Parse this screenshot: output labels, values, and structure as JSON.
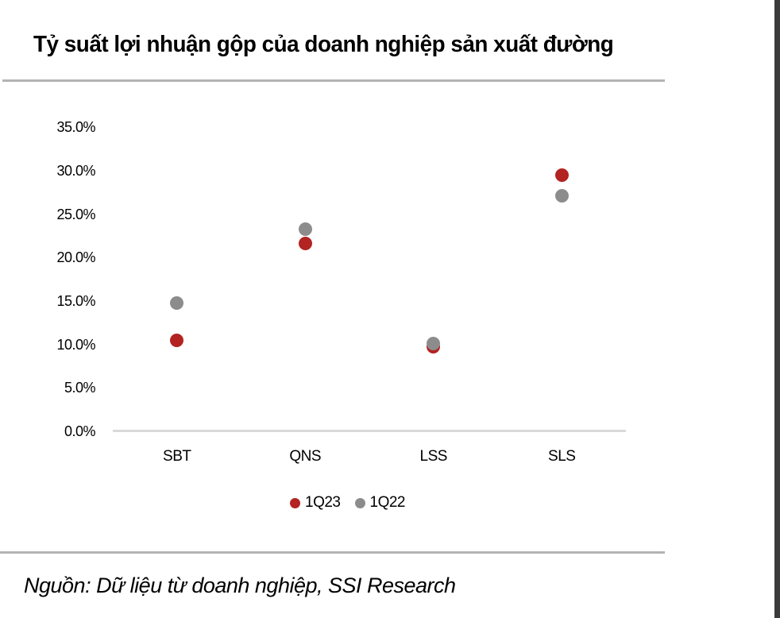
{
  "header": {
    "title": "Tỷ suất lợi nhuận gộp của doanh nghiệp sản xuất đường"
  },
  "footer": {
    "source": "Nguồn: Dữ liệu từ doanh nghiệp, SSI Research"
  },
  "colors": {
    "series_1q23": "#B22321",
    "series_1q22": "#8C8C8C",
    "axis_line": "#D9D9D9",
    "rule_line": "#B3B3B3",
    "right_bar": "#3B3B3B"
  },
  "chart_data": {
    "type": "scatter",
    "title": "Tỷ suất lợi nhuận gộp của doanh nghiệp sản xuất đường",
    "categories": [
      "SBT",
      "QNS",
      "LSS",
      "SLS"
    ],
    "series": [
      {
        "name": "1Q23",
        "color": "#B22321",
        "values": [
          10.5,
          21.6,
          9.7,
          29.5
        ]
      },
      {
        "name": "1Q22",
        "color": "#8C8C8C",
        "values": [
          14.8,
          23.3,
          10.1,
          27.1
        ]
      }
    ],
    "ylim": [
      0,
      35
    ],
    "ytick_step": 5,
    "ytick_labels": [
      "35.0%",
      "30.0%",
      "25.0%",
      "20.0%",
      "15.0%",
      "10.0%",
      "5.0%",
      "0.0%"
    ],
    "xlabel": "",
    "ylabel": "",
    "grid": false,
    "legend_position": "bottom"
  }
}
